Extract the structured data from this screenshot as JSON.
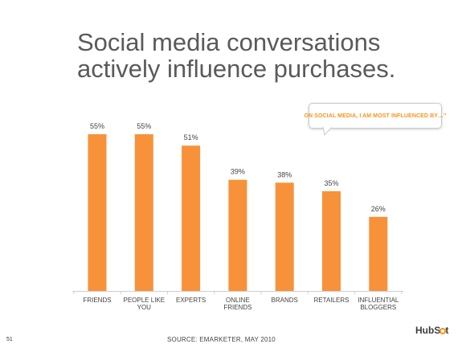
{
  "slide": {
    "title_line1": "Social media conversations",
    "title_line2": "actively influence purchases.",
    "callout": "ON SOCIAL MEDIA, I AM MOST INFLUENCED BY…\"",
    "source": "SOURCE: EMARKETER, MAY 2010",
    "page_number": "51",
    "logo_part1": "HubS",
    "logo_part2": "t",
    "accent_color": "#f7941d"
  },
  "chart_data": {
    "type": "bar",
    "categories": [
      [
        "FRIENDS"
      ],
      [
        "PEOPLE LIKE",
        "YOU"
      ],
      [
        "EXPERTS"
      ],
      [
        "ONLINE",
        "FRIENDS"
      ],
      [
        "BRANDS"
      ],
      [
        "RETAILERS"
      ],
      [
        "INFLUENTIAL",
        "BLOGGERS"
      ]
    ],
    "values": [
      55,
      55,
      51,
      39,
      38,
      35,
      26
    ],
    "value_labels": [
      "55%",
      "55%",
      "51%",
      "39%",
      "38%",
      "35%",
      "26%"
    ],
    "ylim": [
      0,
      55
    ],
    "grid": false,
    "bar_color": "#f7923a"
  }
}
